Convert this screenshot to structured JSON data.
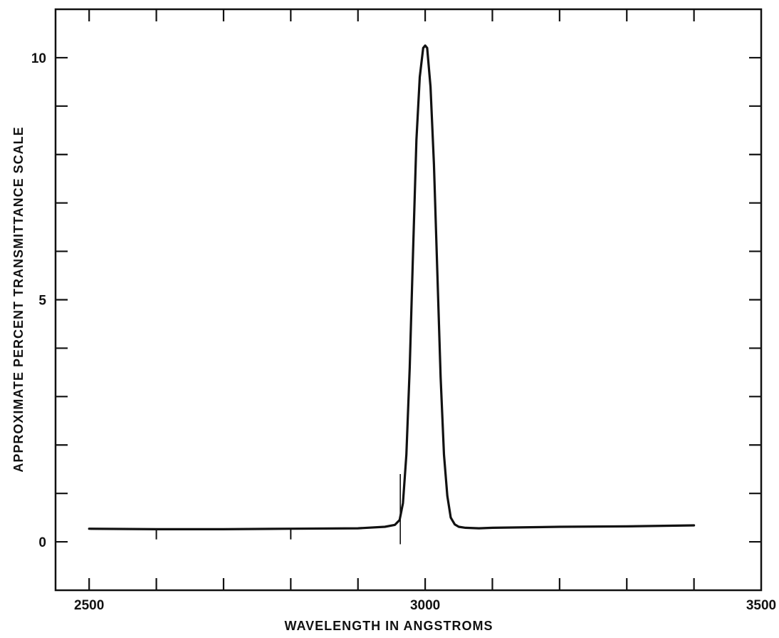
{
  "chart_data": {
    "type": "line",
    "title": "",
    "xlabel": "WAVELENGTH IN ANGSTROMS",
    "ylabel": "APPROXIMATE PERCENT TRANSMITTANCE SCALE",
    "xlim": [
      2450,
      3500
    ],
    "ylim": [
      -1,
      11
    ],
    "grid": false,
    "x_major_ticks": [
      2500,
      2600,
      2700,
      2800,
      2900,
      3000,
      3100,
      3200,
      3300,
      3400,
      3500
    ],
    "y_major_ticks": [
      -1,
      0,
      1,
      2,
      3,
      4,
      5,
      6,
      7,
      8,
      9,
      10,
      11
    ],
    "x_tick_labels": [
      {
        "value": 2500,
        "text": "2500"
      },
      {
        "value": 3000,
        "text": "3000"
      },
      {
        "value": 3500,
        "text": "3500"
      }
    ],
    "y_tick_labels": [
      {
        "value": 0,
        "text": "0"
      },
      {
        "value": 5,
        "text": "5"
      },
      {
        "value": 10,
        "text": "10"
      }
    ],
    "markers": [
      {
        "x": 2600,
        "kind": "minor"
      },
      {
        "x": 2800,
        "kind": "minor"
      },
      {
        "x": 2963,
        "kind": "reference"
      }
    ],
    "series": [
      {
        "color": "#111111",
        "x": [
          2500,
          2600,
          2700,
          2800,
          2900,
          2940,
          2955,
          2962,
          2967,
          2972,
          2977,
          2982,
          2987,
          2992,
          2997,
          3000,
          3003,
          3008,
          3013,
          3018,
          3023,
          3028,
          3033,
          3038,
          3044,
          3050,
          3060,
          3080,
          3100,
          3200,
          3300,
          3400
        ],
        "y": [
          0.27,
          0.26,
          0.26,
          0.27,
          0.28,
          0.31,
          0.35,
          0.45,
          0.8,
          1.8,
          3.6,
          6.0,
          8.3,
          9.6,
          10.2,
          10.25,
          10.2,
          9.4,
          7.8,
          5.6,
          3.4,
          1.8,
          0.95,
          0.5,
          0.36,
          0.31,
          0.29,
          0.28,
          0.29,
          0.31,
          0.32,
          0.34
        ]
      }
    ]
  }
}
